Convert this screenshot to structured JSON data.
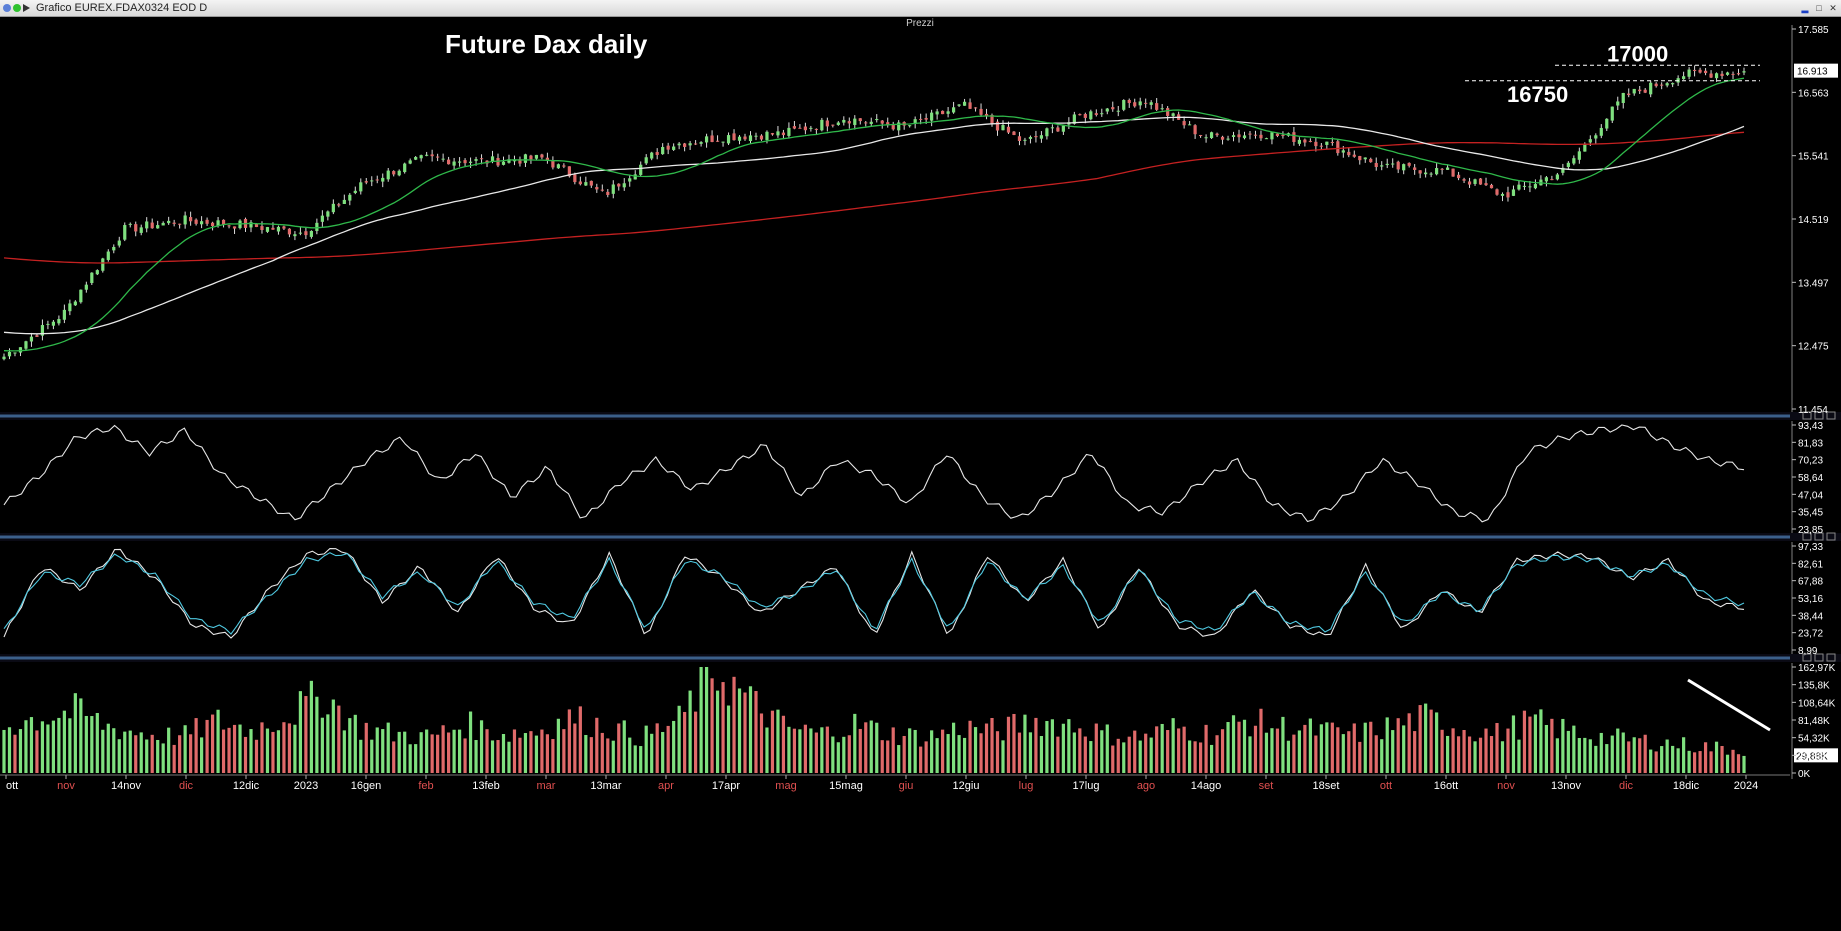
{
  "window": {
    "title": "Grafico EUREX.FDAX0324 EOD D",
    "price_panel_title": "Prezzi"
  },
  "colors": {
    "background": "#000000",
    "up_candle": "#7fe07f",
    "down_candle": "#e06a6a",
    "ma_fast": "#2fb84a",
    "ma_mid": "#e8e8e8",
    "ma_slow": "#c42121",
    "stoch_k": "#e6e6e6",
    "stoch_d": "#4fc8e0",
    "separator": "#3b5f8a"
  },
  "chart_data": [
    {
      "type": "candlestick",
      "title": "Future Dax daily",
      "y_ticks": [
        "17.585",
        "16.563",
        "15.541",
        "14.519",
        "13.497",
        "12.475",
        "11.454"
      ],
      "ylim": [
        11454,
        17585
      ],
      "last_value_label": "16.913",
      "overlays": [
        "moving average (green)",
        "moving average (white)",
        "moving average (red)"
      ],
      "annotations": [
        {
          "text": "17000",
          "value": 17000
        },
        {
          "text": "16750",
          "value": 16750
        }
      ],
      "close_path": [
        {
          "label": "ott",
          "close": 12300
        },
        {
          "label": "nov",
          "close": 13000
        },
        {
          "label": "14nov",
          "close": 14350
        },
        {
          "label": "dic",
          "close": 14500
        },
        {
          "label": "12dic",
          "close": 14420
        },
        {
          "label": "2023",
          "close": 14300
        },
        {
          "label": "16gen",
          "close": 15100
        },
        {
          "label": "feb",
          "close": 15500
        },
        {
          "label": "13feb",
          "close": 15450
        },
        {
          "label": "mar",
          "close": 15500
        },
        {
          "label": "13mar",
          "close": 14900
        },
        {
          "label": "apr",
          "close": 15700
        },
        {
          "label": "17apr",
          "close": 15850
        },
        {
          "label": "mag",
          "close": 15900
        },
        {
          "label": "15mag",
          "close": 16150
        },
        {
          "label": "giu",
          "close": 16000
        },
        {
          "label": "12giu",
          "close": 16350
        },
        {
          "label": "lug",
          "close": 15750
        },
        {
          "label": "17lug",
          "close": 16200
        },
        {
          "label": "ago",
          "close": 16450
        },
        {
          "label": "14ago",
          "close": 15850
        },
        {
          "label": "set",
          "close": 15900
        },
        {
          "label": "18set",
          "close": 15750
        },
        {
          "label": "ott",
          "close": 15350
        },
        {
          "label": "16ott",
          "close": 15300
        },
        {
          "label": "nov",
          "close": 14900
        },
        {
          "label": "13nov",
          "close": 15300
        },
        {
          "label": "dic",
          "close": 16500
        },
        {
          "label": "18dic",
          "close": 16850
        },
        {
          "label": "2024",
          "close": 16900
        }
      ]
    },
    {
      "type": "line",
      "series": [
        {
          "values": [
            40,
            60,
            85,
            92,
            75,
            90,
            60,
            45,
            30,
            50,
            70,
            85,
            55,
            75,
            45,
            65,
            30,
            55,
            70,
            50,
            65,
            80,
            45,
            70,
            60,
            40,
            75,
            45,
            30,
            50,
            75,
            40,
            35,
            55,
            70,
            40,
            30,
            45,
            70,
            55,
            35,
            30,
            75,
            85,
            90,
            93,
            80,
            70,
            65
          ]
        }
      ],
      "y_ticks": [
        "93,43",
        "81,83",
        "70,23",
        "58,64",
        "47,04",
        "35,45",
        "23,85"
      ],
      "ylim": [
        23.85,
        93.43
      ]
    },
    {
      "type": "line",
      "series": [
        {
          "values": [
            20,
            80,
            60,
            95,
            70,
            30,
            20,
            60,
            90,
            95,
            50,
            80,
            40,
            90,
            45,
            30,
            90,
            20,
            90,
            70,
            40,
            60,
            80,
            20,
            90,
            20,
            90,
            50,
            85,
            25,
            80,
            30,
            20,
            60,
            30,
            20,
            80,
            25,
            60,
            40,
            85,
            90,
            88,
            70,
            85,
            50,
            45
          ]
        },
        {
          "values": [
            25,
            75,
            65,
            90,
            72,
            35,
            25,
            55,
            85,
            92,
            55,
            75,
            45,
            85,
            50,
            35,
            85,
            25,
            85,
            72,
            45,
            58,
            78,
            25,
            85,
            25,
            85,
            52,
            80,
            30,
            78,
            35,
            25,
            58,
            32,
            25,
            75,
            30,
            58,
            42,
            82,
            88,
            86,
            72,
            82,
            55,
            48
          ]
        }
      ],
      "y_ticks": [
        "97,33",
        "82,61",
        "67,88",
        "53,16",
        "38,44",
        "23,72",
        "8,99"
      ],
      "ylim": [
        8.99,
        97.33
      ]
    },
    {
      "type": "bar",
      "title": "",
      "y_ticks": [
        "162,97K",
        "135,8K",
        "108,64K",
        "81,48K",
        "54,32K",
        "29,88K",
        "0K"
      ],
      "ylim": [
        0,
        162970
      ],
      "last_value_label": "29,88K",
      "annotations": [
        {
          "text": "",
          "kind": "declining trend line"
        }
      ],
      "volume_profile": [
        72,
        85,
        95,
        70,
        60,
        55,
        80,
        65,
        90,
        120,
        70,
        60,
        55,
        75,
        60,
        65,
        85,
        70,
        55,
        80,
        160,
        110,
        70,
        60,
        75,
        60,
        55,
        70,
        65,
        80,
        75,
        60,
        55,
        70,
        60,
        80,
        70,
        65,
        60,
        70,
        85,
        70,
        60,
        80,
        65,
        55,
        50,
        45,
        40,
        35
      ]
    }
  ],
  "x_axis": {
    "labels": [
      {
        "text": "ott",
        "color": "#ffffff"
      },
      {
        "text": "nov",
        "color": "#e05050"
      },
      {
        "text": "14nov",
        "color": "#ffffff"
      },
      {
        "text": "dic",
        "color": "#e05050"
      },
      {
        "text": "12dic",
        "color": "#ffffff"
      },
      {
        "text": "2023",
        "color": "#ffffff"
      },
      {
        "text": "16gen",
        "color": "#ffffff"
      },
      {
        "text": "feb",
        "color": "#e05050"
      },
      {
        "text": "13feb",
        "color": "#ffffff"
      },
      {
        "text": "mar",
        "color": "#e05050"
      },
      {
        "text": "13mar",
        "color": "#ffffff"
      },
      {
        "text": "apr",
        "color": "#e05050"
      },
      {
        "text": "17apr",
        "color": "#ffffff"
      },
      {
        "text": "mag",
        "color": "#e05050"
      },
      {
        "text": "15mag",
        "color": "#ffffff"
      },
      {
        "text": "giu",
        "color": "#e05050"
      },
      {
        "text": "12giu",
        "color": "#ffffff"
      },
      {
        "text": "lug",
        "color": "#e05050"
      },
      {
        "text": "17lug",
        "color": "#ffffff"
      },
      {
        "text": "ago",
        "color": "#e05050"
      },
      {
        "text": "14ago",
        "color": "#ffffff"
      },
      {
        "text": "set",
        "color": "#e05050"
      },
      {
        "text": "18set",
        "color": "#ffffff"
      },
      {
        "text": "ott",
        "color": "#e05050"
      },
      {
        "text": "16ott",
        "color": "#ffffff"
      },
      {
        "text": "nov",
        "color": "#e05050"
      },
      {
        "text": "13nov",
        "color": "#ffffff"
      },
      {
        "text": "dic",
        "color": "#e05050"
      },
      {
        "text": "18dic",
        "color": "#ffffff"
      },
      {
        "text": "2024",
        "color": "#ffffff"
      }
    ]
  }
}
